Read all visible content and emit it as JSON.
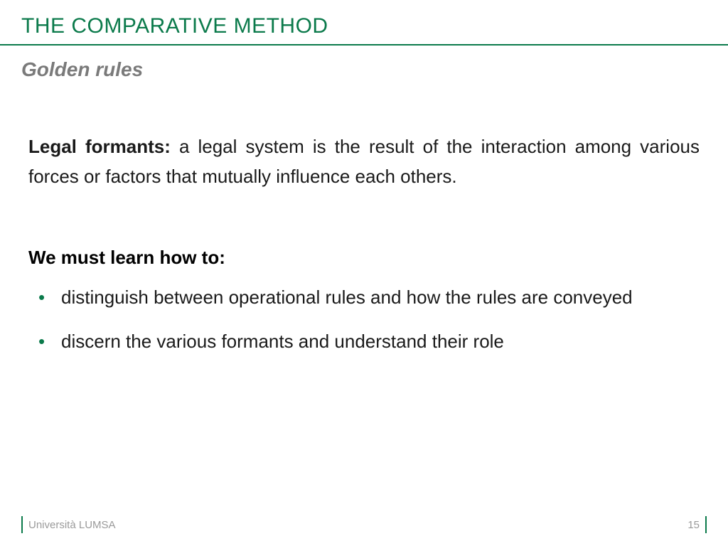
{
  "colors": {
    "accent": "#0b7a4b",
    "subtitle_gray": "#7a7a7a",
    "footer_gray": "#9a9a9a",
    "body_text": "#1a1a1a",
    "background": "#ffffff"
  },
  "typography": {
    "title_fontsize": 30,
    "subtitle_fontsize": 28,
    "body_fontsize": 26,
    "footer_fontsize": 15,
    "font_family": "Arial"
  },
  "title": "THE COMPARATIVE METHOD",
  "subtitle": "Golden rules",
  "paragraph": {
    "lead": "Legal formants:",
    "rest": " a legal system is the result of the interaction among various forces or factors that mutually influence each others."
  },
  "heading2": "We must learn how to:",
  "bullets": [
    "distinguish between operational rules and how the rules are conveyed",
    "discern the various formants and understand their role"
  ],
  "footer": {
    "institution": "Università LUMSA",
    "page_number": "15"
  }
}
